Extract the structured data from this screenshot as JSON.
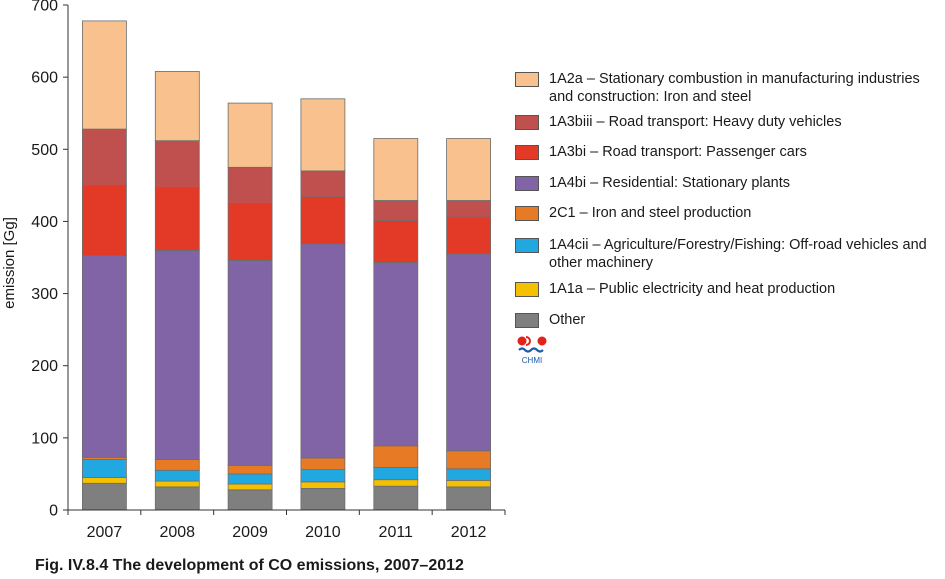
{
  "chart_data": {
    "type": "bar",
    "stacked": true,
    "title": "",
    "ylabel": "emission [Gg]",
    "xlabel": "",
    "ylim": [
      0,
      700
    ],
    "yticks": [
      0,
      100,
      200,
      300,
      400,
      500,
      600,
      700
    ],
    "categories": [
      "2007",
      "2008",
      "2009",
      "2010",
      "2011",
      "2012"
    ],
    "grid": false,
    "legend_position": "right",
    "series": [
      {
        "name": "Other",
        "color": "#7f7f7f",
        "values": [
          37,
          32,
          28,
          30,
          33,
          32
        ]
      },
      {
        "name": "1A1a – Public electricity and heat production",
        "color": "#f5c000",
        "values": [
          8,
          8,
          8,
          9,
          9,
          9
        ]
      },
      {
        "name": "1A4cii – Agriculture/Forestry/Fishing: Off-road vehicles and other machinery",
        "color": "#22a8e0",
        "values": [
          25,
          15,
          14,
          17,
          17,
          16
        ]
      },
      {
        "name": "2C1 – Iron and steel production",
        "color": "#e77a24",
        "values": [
          3,
          15,
          12,
          16,
          30,
          25
        ]
      },
      {
        "name": "1A4bi  – Residential: Stationary plants",
        "color": "#8064a6",
        "values": [
          280,
          290,
          284,
          297,
          254,
          273
        ]
      },
      {
        "name": "1A3bi – Road transport: Passenger cars",
        "color": "#e23a26",
        "values": [
          97,
          87,
          79,
          65,
          58,
          51
        ]
      },
      {
        "name": "1A3biii – Road transport: Heavy duty vehicles",
        "color": "#c0504d",
        "values": [
          78,
          65,
          50,
          36,
          28,
          23
        ]
      },
      {
        "name": "1A2a – Stationary combustion in manufacturing industries and construction: Iron and steel",
        "color": "#f9c18d",
        "values": [
          150,
          96,
          89,
          100,
          86,
          86
        ]
      }
    ]
  },
  "legend": [
    {
      "label": "1A2a – Stationary combustion in manufacturing industries and construction: Iron and steel",
      "color": "#f9c18d"
    },
    {
      "label": "1A3biii – Road transport: Heavy duty vehicles",
      "color": "#c0504d"
    },
    {
      "label": "1A3bi – Road transport: Passenger cars",
      "color": "#e23a26"
    },
    {
      "label": "1A4bi  – Residential: Stationary plants",
      "color": "#8064a6"
    },
    {
      "label": "2C1 – Iron and steel production",
      "color": "#e77a24"
    },
    {
      "label": "1A4cii – Agriculture/Forestry/Fishing: Off-road vehicles and other machinery",
      "color": "#22a8e0"
    },
    {
      "label": "1A1a – Public electricity and heat production",
      "color": "#f5c000"
    },
    {
      "label": "Other",
      "color": "#7f7f7f"
    }
  ],
  "logo": {
    "text": "CHMI"
  },
  "caption": "Fig. IV.8.4  The development of CO emissions, 2007–2012"
}
